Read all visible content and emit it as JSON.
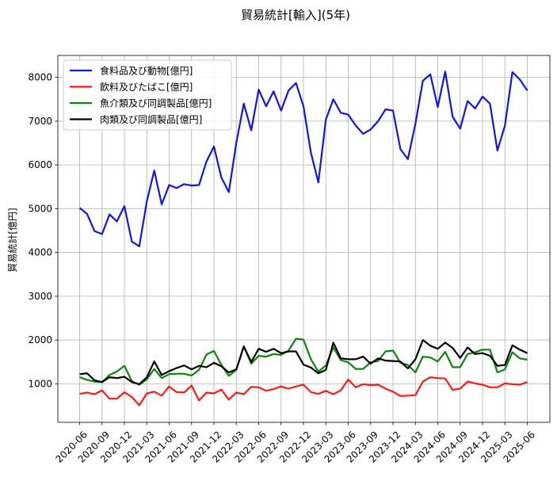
{
  "chart_data": {
    "type": "line",
    "title": "貿易統計[輸入](5年)",
    "xlabel": "",
    "ylabel": "貿易統計[億円]",
    "ylim": [
      120,
      8500
    ],
    "yticks": [
      1000,
      2000,
      3000,
      4000,
      5000,
      6000,
      7000,
      8000
    ],
    "grid": true,
    "legend_position": "top-left",
    "x_tick_labels": [
      "2020-06",
      "2020-09",
      "2020-12",
      "2021-03",
      "2021-06",
      "2021-09",
      "2021-12",
      "2022-03",
      "2022-06",
      "2022-09",
      "2022-12",
      "2023-03",
      "2023-06",
      "2023-09",
      "2023-12",
      "2024-03",
      "2024-06",
      "2024-09",
      "2024-12",
      "2025-03",
      "2025-06"
    ],
    "categories": [
      "2020-06",
      "2020-07",
      "2020-08",
      "2020-09",
      "2020-10",
      "2020-11",
      "2020-12",
      "2021-01",
      "2021-02",
      "2021-03",
      "2021-04",
      "2021-05",
      "2021-06",
      "2021-07",
      "2021-08",
      "2021-09",
      "2021-10",
      "2021-11",
      "2021-12",
      "2022-01",
      "2022-02",
      "2022-03",
      "2022-04",
      "2022-05",
      "2022-06",
      "2022-07",
      "2022-08",
      "2022-09",
      "2022-10",
      "2022-11",
      "2022-12",
      "2023-01",
      "2023-02",
      "2023-03",
      "2023-04",
      "2023-05",
      "2023-06",
      "2023-07",
      "2023-08",
      "2023-09",
      "2023-10",
      "2023-11",
      "2023-12",
      "2024-01",
      "2024-02",
      "2024-03",
      "2024-04",
      "2024-05",
      "2024-06",
      "2024-07",
      "2024-08",
      "2024-09",
      "2024-10",
      "2024-11",
      "2024-12",
      "2025-01",
      "2025-02",
      "2025-03",
      "2025-04",
      "2025-05",
      "2025-06"
    ],
    "series": [
      {
        "name": "食料品及び動物[億円]",
        "color": "#1414e6",
        "values": [
          5020,
          4880,
          4490,
          4420,
          4870,
          4710,
          5060,
          4250,
          4140,
          5170,
          5870,
          5100,
          5540,
          5470,
          5560,
          5530,
          5540,
          6080,
          6420,
          5710,
          5380,
          6510,
          7400,
          6790,
          7720,
          7340,
          7680,
          7240,
          7700,
          7870,
          7340,
          6280,
          5600,
          7040,
          7500,
          7190,
          7150,
          6900,
          6710,
          6810,
          7000,
          7270,
          7240,
          6360,
          6130,
          6940,
          7920,
          8070,
          7320,
          8130,
          7100,
          6830,
          7460,
          7290,
          7560,
          7400,
          6330,
          6900,
          8120,
          7950,
          7700
        ]
      },
      {
        "name": "飲料及びたばこ[億円]",
        "color": "#ff1a1a",
        "values": [
          770,
          800,
          760,
          850,
          660,
          660,
          810,
          700,
          510,
          780,
          820,
          730,
          940,
          810,
          800,
          960,
          620,
          800,
          780,
          870,
          640,
          800,
          760,
          930,
          920,
          840,
          880,
          940,
          890,
          940,
          980,
          810,
          770,
          840,
          760,
          850,
          1100,
          920,
          990,
          970,
          980,
          890,
          820,
          720,
          730,
          740,
          1050,
          1150,
          1130,
          1120,
          860,
          890,
          1050,
          1010,
          980,
          920,
          920,
          1010,
          990,
          980,
          1040
        ]
      },
      {
        "name": "魚介類及び同調製品[億円]",
        "color": "#0f820f",
        "values": [
          1150,
          1090,
          1050,
          1040,
          1200,
          1280,
          1410,
          1060,
          980,
          1100,
          1340,
          1130,
          1220,
          1230,
          1230,
          1190,
          1320,
          1670,
          1750,
          1430,
          1180,
          1320,
          1860,
          1460,
          1640,
          1620,
          1680,
          1660,
          1760,
          2030,
          2010,
          1560,
          1280,
          1420,
          1830,
          1540,
          1490,
          1340,
          1340,
          1490,
          1520,
          1740,
          1760,
          1480,
          1430,
          1260,
          1620,
          1600,
          1510,
          1730,
          1380,
          1380,
          1680,
          1720,
          1780,
          1780,
          1260,
          1330,
          1720,
          1580,
          1550
        ]
      },
      {
        "name": "肉類及び同調製品[億円]",
        "color": "#000000",
        "values": [
          1220,
          1240,
          1080,
          1040,
          1150,
          1130,
          1160,
          1040,
          990,
          1150,
          1510,
          1200,
          1290,
          1360,
          1420,
          1330,
          1410,
          1380,
          1480,
          1400,
          1260,
          1330,
          1850,
          1500,
          1800,
          1730,
          1800,
          1700,
          1740,
          1740,
          1440,
          1370,
          1240,
          1320,
          1940,
          1580,
          1560,
          1560,
          1620,
          1460,
          1580,
          1530,
          1520,
          1510,
          1350,
          1560,
          2000,
          1870,
          1800,
          1940,
          1820,
          1590,
          1830,
          1680,
          1700,
          1640,
          1410,
          1430,
          1880,
          1780,
          1700
        ]
      }
    ]
  }
}
